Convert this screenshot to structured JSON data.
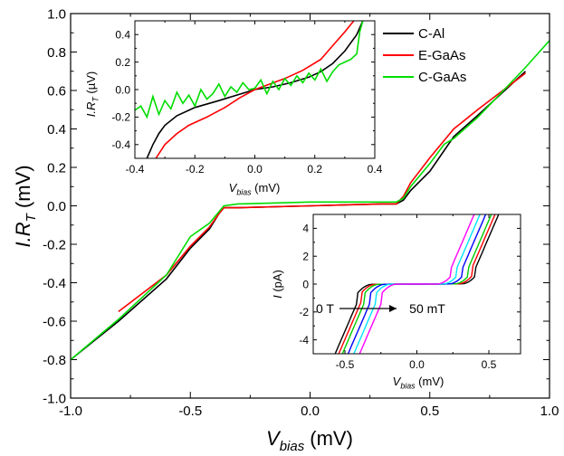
{
  "chart_data": [
    {
      "id": "main",
      "type": "line",
      "xlabel": "V",
      "xlabel_sub": "bias",
      "xlabel_unit": "(mV)",
      "ylabel": "I.R",
      "ylabel_sub": "T",
      "ylabel_unit": "(mV)",
      "xlim": [
        -1.0,
        1.0
      ],
      "ylim": [
        -1.0,
        1.0
      ],
      "xticks": [
        -1.0,
        -0.5,
        0.0,
        0.5,
        1.0
      ],
      "xtick_labels": [
        "-1.0",
        "-0.5",
        "0.0",
        "0.5",
        "1.0"
      ],
      "yticks": [
        -1.0,
        -0.8,
        -0.6,
        -0.4,
        -0.2,
        0.0,
        0.2,
        0.4,
        0.6,
        0.8,
        1.0
      ],
      "ytick_labels": [
        "-1.0",
        "-0.8",
        "-0.6",
        "-0.4",
        "-0.2",
        "0.0",
        "0.2",
        "0.4",
        "0.6",
        "0.8",
        "1.0"
      ],
      "legend_position": "top-right",
      "series": [
        {
          "name": "C-Al",
          "color": "#000000",
          "x": [
            -1.0,
            -0.8,
            -0.6,
            -0.5,
            -0.42,
            -0.38,
            -0.36,
            -0.3,
            0.0,
            0.3,
            0.36,
            0.39,
            0.42,
            0.5,
            0.6,
            0.7,
            0.9
          ],
          "y": [
            -0.8,
            -0.6,
            -0.38,
            -0.22,
            -0.12,
            -0.04,
            -0.01,
            -0.01,
            0.0,
            0.01,
            0.01,
            0.03,
            0.08,
            0.18,
            0.36,
            0.47,
            0.7
          ]
        },
        {
          "name": "E-GaAs",
          "color": "#ff0000",
          "x": [
            -0.8,
            -0.6,
            -0.5,
            -0.42,
            -0.38,
            -0.36,
            -0.3,
            0.0,
            0.3,
            0.36,
            0.39,
            0.42,
            0.5,
            0.6,
            0.7,
            0.9
          ],
          "y": [
            -0.55,
            -0.36,
            -0.21,
            -0.11,
            -0.04,
            -0.01,
            -0.01,
            0.0,
            0.01,
            0.01,
            0.05,
            0.12,
            0.25,
            0.4,
            0.5,
            0.69
          ]
        },
        {
          "name": "C-GaAs",
          "color": "#00dd00",
          "x": [
            -1.0,
            -0.8,
            -0.6,
            -0.56,
            -0.5,
            -0.42,
            -0.38,
            -0.36,
            -0.3,
            0.0,
            0.3,
            0.36,
            0.39,
            0.42,
            0.5,
            0.56,
            0.6,
            0.7,
            0.9,
            1.0
          ],
          "y": [
            -0.8,
            -0.59,
            -0.36,
            -0.28,
            -0.16,
            -0.09,
            -0.03,
            0.0,
            0.01,
            0.02,
            0.02,
            0.02,
            0.04,
            0.1,
            0.22,
            0.32,
            0.35,
            0.46,
            0.72,
            0.86
          ]
        }
      ]
    },
    {
      "id": "inset_top",
      "type": "line",
      "xlabel": "V",
      "xlabel_sub": "bias",
      "xlabel_unit": "(mV)",
      "ylabel": "I.R",
      "ylabel_sub": "T",
      "ylabel_unit": "(µV)",
      "xlim": [
        -0.4,
        0.4
      ],
      "ylim": [
        -0.5,
        0.5
      ],
      "xticks": [
        -0.4,
        -0.2,
        0.0,
        0.2,
        0.4
      ],
      "xtick_labels": [
        "-0.4",
        "-0.2",
        "0.0",
        "0.2",
        "0.4"
      ],
      "yticks": [
        -0.4,
        -0.2,
        0.0,
        0.2,
        0.4
      ],
      "ytick_labels": [
        "-0.4",
        "-0.2",
        "0.0",
        "0.2",
        "0.4"
      ],
      "series": [
        {
          "name": "C-Al",
          "color": "#000000",
          "x": [
            -0.36,
            -0.34,
            -0.32,
            -0.3,
            -0.26,
            -0.2,
            -0.12,
            -0.06,
            0.0,
            0.06,
            0.12,
            0.18,
            0.22,
            0.26,
            0.3,
            0.34,
            0.36
          ],
          "y": [
            -0.5,
            -0.4,
            -0.32,
            -0.26,
            -0.19,
            -0.13,
            -0.08,
            -0.04,
            0.0,
            0.02,
            0.05,
            0.09,
            0.13,
            0.19,
            0.28,
            0.4,
            0.5
          ]
        },
        {
          "name": "E-GaAs",
          "color": "#ff0000",
          "x": [
            -0.33,
            -0.3,
            -0.26,
            -0.22,
            -0.16,
            -0.1,
            -0.05,
            0.0,
            0.05,
            0.1,
            0.16,
            0.22,
            0.26,
            0.3,
            0.33
          ],
          "y": [
            -0.5,
            -0.4,
            -0.32,
            -0.26,
            -0.2,
            -0.13,
            -0.06,
            0.0,
            0.04,
            0.08,
            0.14,
            0.22,
            0.32,
            0.42,
            0.5
          ]
        },
        {
          "name": "C-GaAs",
          "color": "#00dd00",
          "x": [
            -0.4,
            -0.38,
            -0.36,
            -0.34,
            -0.32,
            -0.3,
            -0.28,
            -0.26,
            -0.24,
            -0.22,
            -0.2,
            -0.18,
            -0.16,
            -0.14,
            -0.12,
            -0.1,
            -0.08,
            -0.06,
            -0.04,
            -0.02,
            0.0,
            0.02,
            0.04,
            0.06,
            0.08,
            0.1,
            0.12,
            0.14,
            0.16,
            0.18,
            0.2,
            0.22,
            0.24,
            0.26,
            0.28,
            0.3,
            0.32,
            0.34,
            0.35,
            0.36
          ],
          "y": [
            -0.15,
            -0.12,
            -0.2,
            -0.05,
            -0.18,
            -0.08,
            -0.14,
            -0.02,
            -0.1,
            -0.04,
            -0.12,
            0.0,
            -0.07,
            -0.03,
            0.04,
            -0.05,
            0.02,
            -0.02,
            0.05,
            0.0,
            0.01,
            0.07,
            -0.03,
            0.06,
            0.0,
            0.08,
            0.03,
            0.1,
            0.05,
            0.12,
            0.07,
            0.15,
            0.06,
            0.13,
            0.18,
            0.2,
            0.22,
            0.26,
            0.42,
            0.5
          ]
        }
      ]
    },
    {
      "id": "inset_bottom",
      "type": "line",
      "xlabel": "V",
      "xlabel_sub": "bias",
      "xlabel_unit": "(mV)",
      "ylabel": "I (pA)",
      "xlim": [
        -0.72,
        0.72
      ],
      "ylim": [
        -5,
        5
      ],
      "xticks": [
        -0.5,
        0.0,
        0.5
      ],
      "xtick_labels": [
        "-0.5",
        "0.0",
        "0.5"
      ],
      "yticks": [
        -4,
        -2,
        0,
        2,
        4
      ],
      "ytick_labels": [
        "-4",
        "-2",
        "0",
        "2",
        "4"
      ],
      "annotation_start": "0 T",
      "annotation_end": "50 mT",
      "curve_shifts": [
        0.0,
        0.025,
        0.05,
        0.09,
        0.13,
        0.17
      ],
      "curve_colors": [
        "#000000",
        "#ff0000",
        "#00cc00",
        "#0000ff",
        "#00e5ff",
        "#ff00ff"
      ]
    }
  ]
}
